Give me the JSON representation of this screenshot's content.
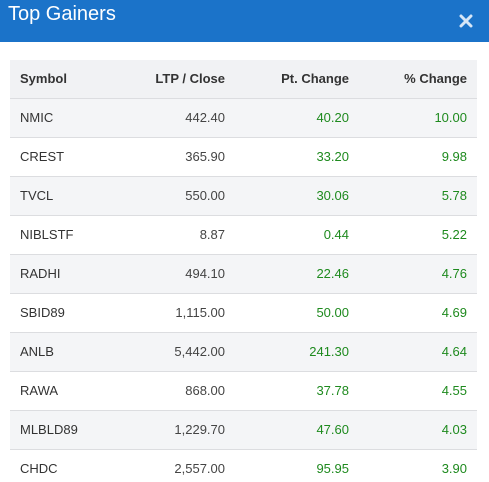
{
  "header": {
    "title": "Top Gainers",
    "close_icon": "close-icon"
  },
  "table": {
    "columns": [
      "Symbol",
      "LTP / Close",
      "Pt. Change",
      "% Change"
    ],
    "rows": [
      {
        "symbol": "NMIC",
        "ltp": "442.40",
        "pt_change": "40.20",
        "pct_change": "10.00"
      },
      {
        "symbol": "CREST",
        "ltp": "365.90",
        "pt_change": "33.20",
        "pct_change": "9.98"
      },
      {
        "symbol": "TVCL",
        "ltp": "550.00",
        "pt_change": "30.06",
        "pct_change": "5.78"
      },
      {
        "symbol": "NIBLSTF",
        "ltp": "8.87",
        "pt_change": "0.44",
        "pct_change": "5.22"
      },
      {
        "symbol": "RADHI",
        "ltp": "494.10",
        "pt_change": "22.46",
        "pct_change": "4.76"
      },
      {
        "symbol": "SBID89",
        "ltp": "1,115.00",
        "pt_change": "50.00",
        "pct_change": "4.69"
      },
      {
        "symbol": "ANLB",
        "ltp": "5,442.00",
        "pt_change": "241.30",
        "pct_change": "4.64"
      },
      {
        "symbol": "RAWA",
        "ltp": "868.00",
        "pt_change": "37.78",
        "pct_change": "4.55"
      },
      {
        "symbol": "MLBLD89",
        "ltp": "1,229.70",
        "pt_change": "47.60",
        "pct_change": "4.03"
      },
      {
        "symbol": "CHDC",
        "ltp": "2,557.00",
        "pt_change": "95.95",
        "pct_change": "3.90"
      }
    ]
  },
  "colors": {
    "header_bg": "#1b73c9",
    "positive": "#1e8a1e"
  }
}
